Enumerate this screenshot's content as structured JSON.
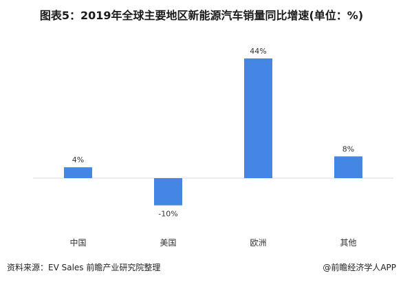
{
  "title": "图表5：2019年全球主要地区新能源汽车销量同比增速(单位：%)",
  "chart_data": {
    "type": "bar",
    "title": "图表5：2019年全球主要地区新能源汽车销量同比增速(单位：%)",
    "categories": [
      "中国",
      "美国",
      "欧洲",
      "其他"
    ],
    "values": [
      4,
      -10,
      44,
      8
    ],
    "value_labels": [
      "4%",
      "-10%",
      "44%",
      "8%"
    ],
    "ylim": [
      -15,
      50
    ],
    "grid": false,
    "bar_color": "#4486E4"
  },
  "footer": {
    "source": "资料来源：EV Sales 前瞻产业研究院整理",
    "brand": "@前瞻经济学人APP"
  }
}
